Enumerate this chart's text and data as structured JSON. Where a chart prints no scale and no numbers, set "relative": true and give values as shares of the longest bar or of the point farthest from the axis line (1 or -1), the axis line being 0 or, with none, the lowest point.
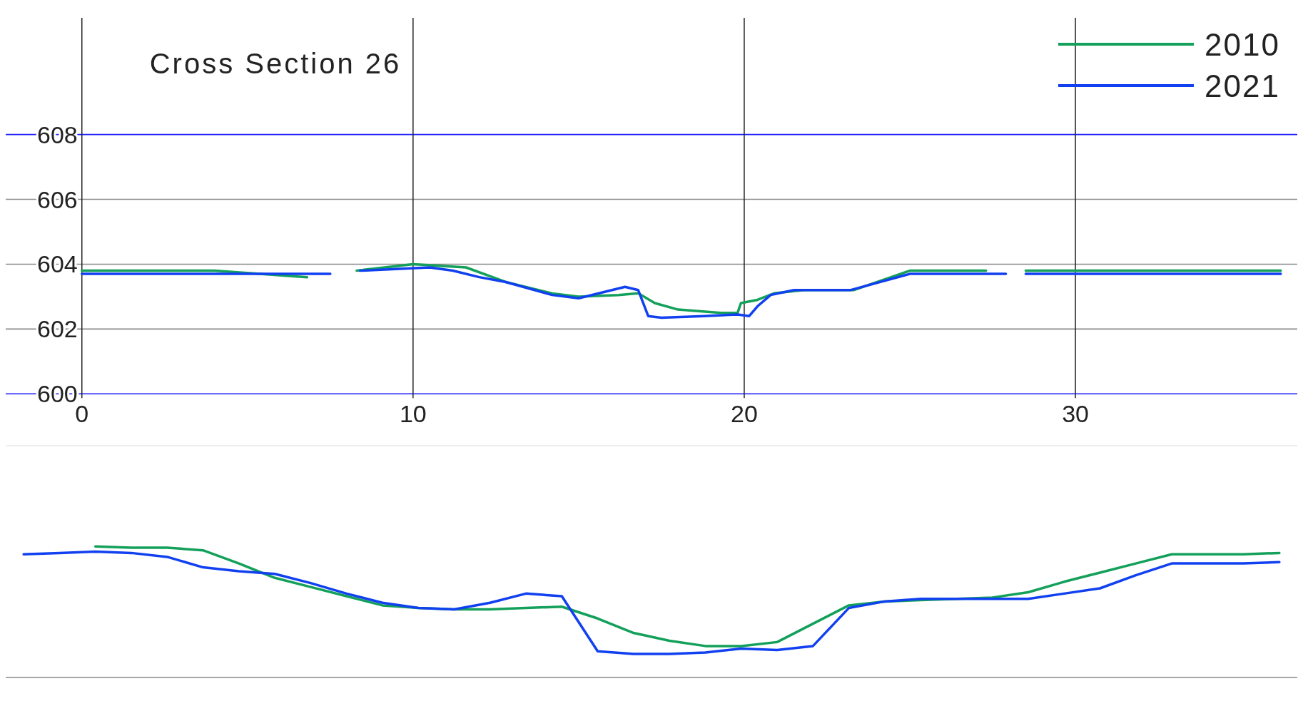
{
  "chart_data": [
    {
      "type": "line",
      "title": "Cross Section 26",
      "xlim": [
        -2.3,
        36.7
      ],
      "ylim": [
        598.4,
        611.6
      ],
      "xticks": [
        0,
        10,
        20,
        30
      ],
      "yticks": [
        600,
        602,
        604,
        606,
        608
      ],
      "grid": true,
      "legend": "top right",
      "series": [
        {
          "name": "2010",
          "color": "#13a05a",
          "x": [
            0,
            4,
            6.8,
            7.5,
            8.3,
            10,
            11.6,
            12.8,
            14.2,
            15,
            16.2,
            16.8,
            17.3,
            18,
            19.3,
            19.8,
            19.9,
            20.4,
            20.9,
            21.8,
            23.3,
            25,
            27.3,
            27.9,
            28.5,
            30,
            32.5,
            36.2
          ],
          "values": [
            603.8,
            603.8,
            603.6,
            null,
            603.8,
            604.0,
            603.9,
            603.45,
            603.1,
            603.0,
            603.05,
            603.1,
            602.8,
            602.6,
            602.5,
            602.5,
            602.8,
            602.9,
            603.1,
            603.2,
            603.2,
            603.8,
            603.8,
            null,
            603.8,
            603.8,
            603.8,
            603.8
          ]
        },
        {
          "name": "2021",
          "color": "#1040f0",
          "x": [
            0,
            3.3,
            5,
            7.5,
            7.9,
            8.4,
            10.5,
            11.2,
            12,
            12.8,
            14.2,
            15,
            16.4,
            16.8,
            17.1,
            17.5,
            18.8,
            19.8,
            20.15,
            20.4,
            20.8,
            21.5,
            23.2,
            25,
            27.9,
            28.2,
            28.5,
            36.2
          ],
          "values": [
            603.7,
            603.7,
            603.7,
            603.7,
            null,
            603.8,
            603.9,
            603.8,
            603.6,
            603.45,
            603.05,
            602.95,
            603.3,
            603.2,
            602.4,
            602.35,
            602.4,
            602.45,
            602.4,
            602.7,
            603.05,
            603.2,
            603.2,
            603.7,
            603.7,
            null,
            603.7,
            603.7
          ]
        }
      ]
    },
    {
      "type": "line",
      "relative": true,
      "categories": [
        null,
        null,
        null,
        null,
        null,
        null,
        null,
        null,
        null,
        null,
        null,
        null,
        null,
        null,
        null,
        null,
        null,
        null,
        null,
        null,
        null,
        null,
        null,
        null,
        null,
        null,
        null,
        null,
        null,
        null,
        null,
        null,
        null,
        null,
        null,
        null
      ],
      "series": [
        {
          "color": "#13a05a",
          "values": [
            null,
            null,
            1.0,
            0.99,
            0.99,
            0.97,
            0.87,
            0.76,
            0.69,
            0.62,
            0.55,
            0.53,
            0.52,
            0.52,
            0.53,
            0.54,
            0.45,
            0.34,
            0.28,
            0.24,
            0.24,
            0.27,
            0.41,
            0.55,
            0.58,
            0.59,
            0.6,
            0.61,
            0.65,
            0.73,
            0.8,
            0.87,
            0.94,
            0.94,
            0.94,
            0.95
          ]
        },
        {
          "color": "#1040f0",
          "values": [
            0.94,
            0.95,
            0.96,
            0.95,
            0.92,
            0.84,
            0.81,
            0.79,
            0.72,
            0.64,
            0.57,
            0.53,
            0.52,
            0.57,
            0.64,
            0.62,
            0.2,
            0.18,
            0.18,
            0.19,
            0.22,
            0.21,
            0.24,
            0.53,
            0.58,
            0.6,
            0.6,
            0.6,
            0.6,
            0.64,
            0.68,
            0.78,
            0.87,
            0.87,
            0.87,
            0.88
          ]
        }
      ]
    }
  ]
}
